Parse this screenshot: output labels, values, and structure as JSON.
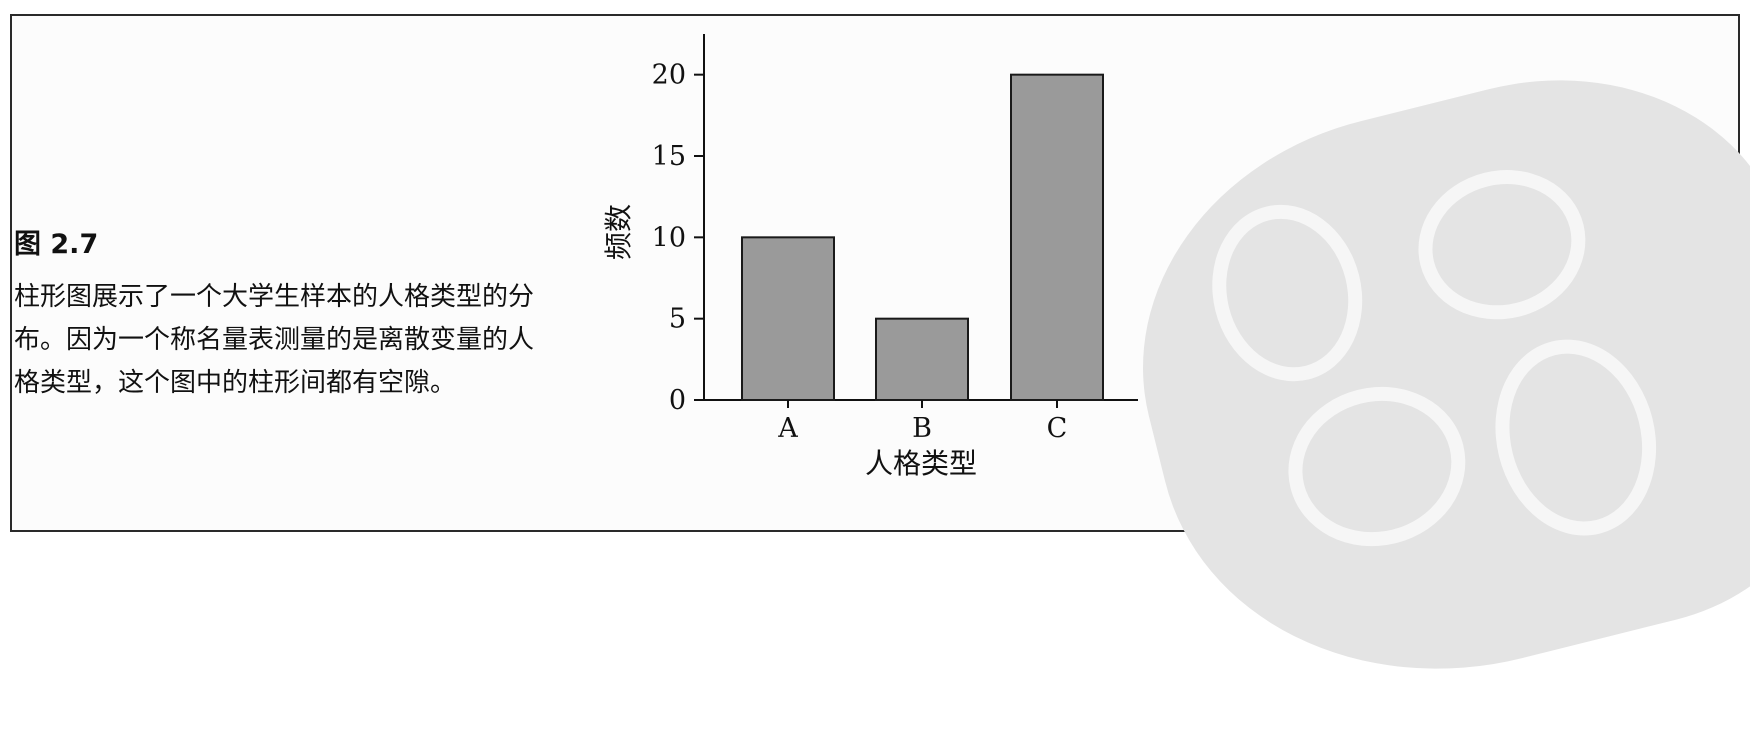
{
  "caption": {
    "title": "图 2.7",
    "body": "柱形图展示了一个大学生样本的人格类型的分布。因为一个称名量表测量的是离散变量的人格类型，这个图中的柱形间都有空隙。"
  },
  "chart_data": {
    "type": "bar",
    "categories": [
      "A",
      "B",
      "C"
    ],
    "values": [
      10,
      5,
      20
    ],
    "xlabel": "人格类型",
    "ylabel": "频数",
    "ylim": [
      0,
      22.5
    ],
    "yticks": [
      0,
      5,
      10,
      15,
      20
    ],
    "grid": false,
    "bar_color": "#9a9a9a",
    "bar_edge_color": "#1a1a1a"
  }
}
